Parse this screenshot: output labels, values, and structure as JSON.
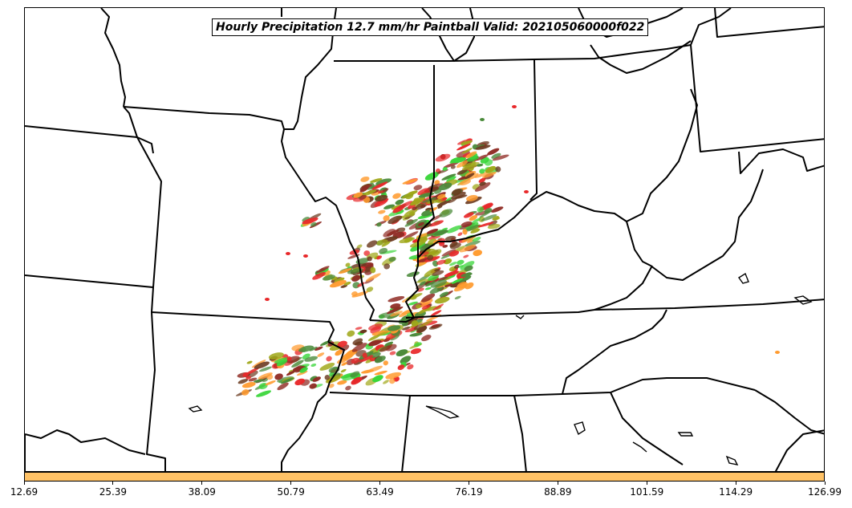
{
  "title": "Hourly Precipitation 12.7 mm/hr Paintball Valid: 202105060000f022",
  "colorbar": {
    "color": "#ffc266",
    "ticks": [
      "12.69",
      "25.39",
      "38.09",
      "50.79",
      "63.49",
      "76.19",
      "88.89",
      "101.59",
      "114.29",
      "126.99"
    ]
  },
  "paintball_colors": [
    "#e8282a",
    "#ff9b2f",
    "#8f2b24",
    "#4a8a3a",
    "#3ad63a",
    "#a0a81a",
    "#6b3a20"
  ],
  "map_line_color": "#000000"
}
